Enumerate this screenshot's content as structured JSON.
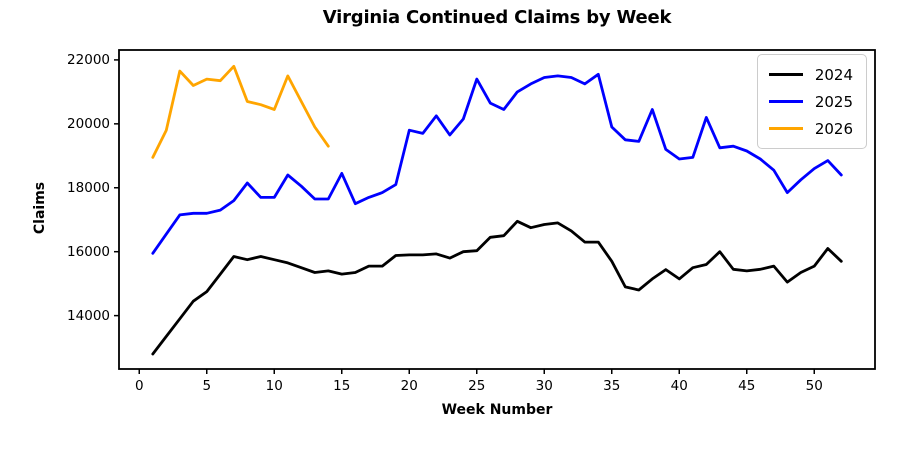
{
  "chart_data": {
    "type": "line",
    "title": "Virginia Continued Claims by Week",
    "xlabel": "Week Number",
    "ylabel": "Claims",
    "grid": false,
    "legend_position": "upper right",
    "xlim": [
      -1.5,
      54.5
    ],
    "ylim": [
      12330,
      22310
    ],
    "xticks": [
      0,
      5,
      10,
      15,
      20,
      25,
      30,
      35,
      40,
      45,
      50
    ],
    "yticks": [
      14000,
      16000,
      18000,
      20000,
      22000
    ],
    "x": [
      1,
      2,
      3,
      4,
      5,
      6,
      7,
      8,
      9,
      10,
      11,
      12,
      13,
      14,
      15,
      16,
      17,
      18,
      19,
      20,
      21,
      22,
      23,
      24,
      25,
      26,
      27,
      28,
      29,
      30,
      31,
      32,
      33,
      34,
      35,
      36,
      37,
      38,
      39,
      40,
      41,
      42,
      43,
      44,
      45,
      46,
      47,
      48,
      49,
      50,
      51,
      52
    ],
    "series": [
      {
        "name": "2024",
        "color": "#000000",
        "values": [
          12800,
          13350,
          13900,
          14450,
          14750,
          15300,
          15850,
          15750,
          15850,
          15750,
          15650,
          15500,
          15350,
          15400,
          15300,
          15350,
          15550,
          15550,
          15880,
          15900,
          15900,
          15930,
          15800,
          16000,
          16030,
          16450,
          16500,
          16950,
          16750,
          16850,
          16900,
          16650,
          16300,
          16300,
          15700,
          14900,
          14800,
          15150,
          15440,
          15150,
          15500,
          15600,
          16000,
          15450,
          15400,
          15450,
          15550,
          15050,
          15350,
          15550,
          16100,
          15700
        ]
      },
      {
        "name": "2025",
        "color": "#0000ff",
        "values": [
          15950,
          16550,
          17150,
          17200,
          17200,
          17300,
          17600,
          18150,
          17700,
          17700,
          18400,
          18050,
          17650,
          17650,
          18450,
          17500,
          17700,
          17850,
          18100,
          19800,
          19700,
          20250,
          19650,
          20150,
          21400,
          20650,
          20450,
          21000,
          21250,
          21450,
          21500,
          21450,
          21250,
          21550,
          19900,
          19500,
          19450,
          20450,
          19200,
          18900,
          18950,
          20200,
          19250,
          19300,
          19150,
          18900,
          18550,
          17850,
          18250,
          18600,
          18850,
          18400
        ]
      },
      {
        "name": "2026",
        "color": "#ffa500",
        "values": [
          18950,
          19800,
          21650,
          21200,
          21400,
          21350,
          21800,
          20700,
          20600,
          20450,
          21500,
          20700,
          19900,
          19300
        ]
      }
    ]
  }
}
